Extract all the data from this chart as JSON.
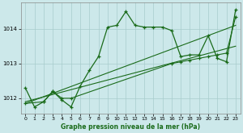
{
  "title": "Graphe pression niveau de la mer (hPa)",
  "background_color": "#cce8ea",
  "line_color": "#1a6b1a",
  "grid_color_major": "#a8cccc",
  "grid_color_minor": "#c4e0e0",
  "xlim": [
    -0.5,
    23.5
  ],
  "ylim": [
    1011.55,
    1014.75
  ],
  "yticks": [
    1012,
    1013,
    1014
  ],
  "xticks": [
    0,
    1,
    2,
    3,
    4,
    5,
    6,
    7,
    8,
    9,
    10,
    11,
    12,
    13,
    14,
    15,
    16,
    17,
    18,
    19,
    20,
    21,
    22,
    23
  ],
  "series1_x": [
    0,
    1,
    2,
    3,
    4,
    5,
    6,
    7,
    8,
    9,
    10,
    11,
    12,
    13,
    14,
    15,
    16,
    17,
    18,
    19,
    20,
    21,
    22,
    23
  ],
  "series1_y": [
    1012.3,
    1011.75,
    1011.9,
    1012.2,
    1011.95,
    1011.75,
    1012.35,
    1012.8,
    1013.2,
    1014.05,
    1014.1,
    1014.5,
    1014.1,
    1014.05,
    1014.05,
    1014.05,
    1013.95,
    1013.2,
    1013.25,
    1013.25,
    1013.8,
    1013.15,
    1013.05,
    1014.55
  ],
  "series2_x": [
    0,
    2,
    3,
    4,
    5,
    16,
    17,
    18,
    19,
    20,
    21,
    22,
    23
  ],
  "series2_y": [
    1011.85,
    1011.9,
    1012.2,
    1012.0,
    1012.0,
    1013.0,
    1013.05,
    1013.1,
    1013.15,
    1013.2,
    1013.25,
    1013.3,
    1014.35
  ],
  "series3_x": [
    0,
    23
  ],
  "series3_y": [
    1011.85,
    1014.1
  ],
  "series4_x": [
    0,
    23
  ],
  "series4_y": [
    1011.9,
    1013.5
  ]
}
